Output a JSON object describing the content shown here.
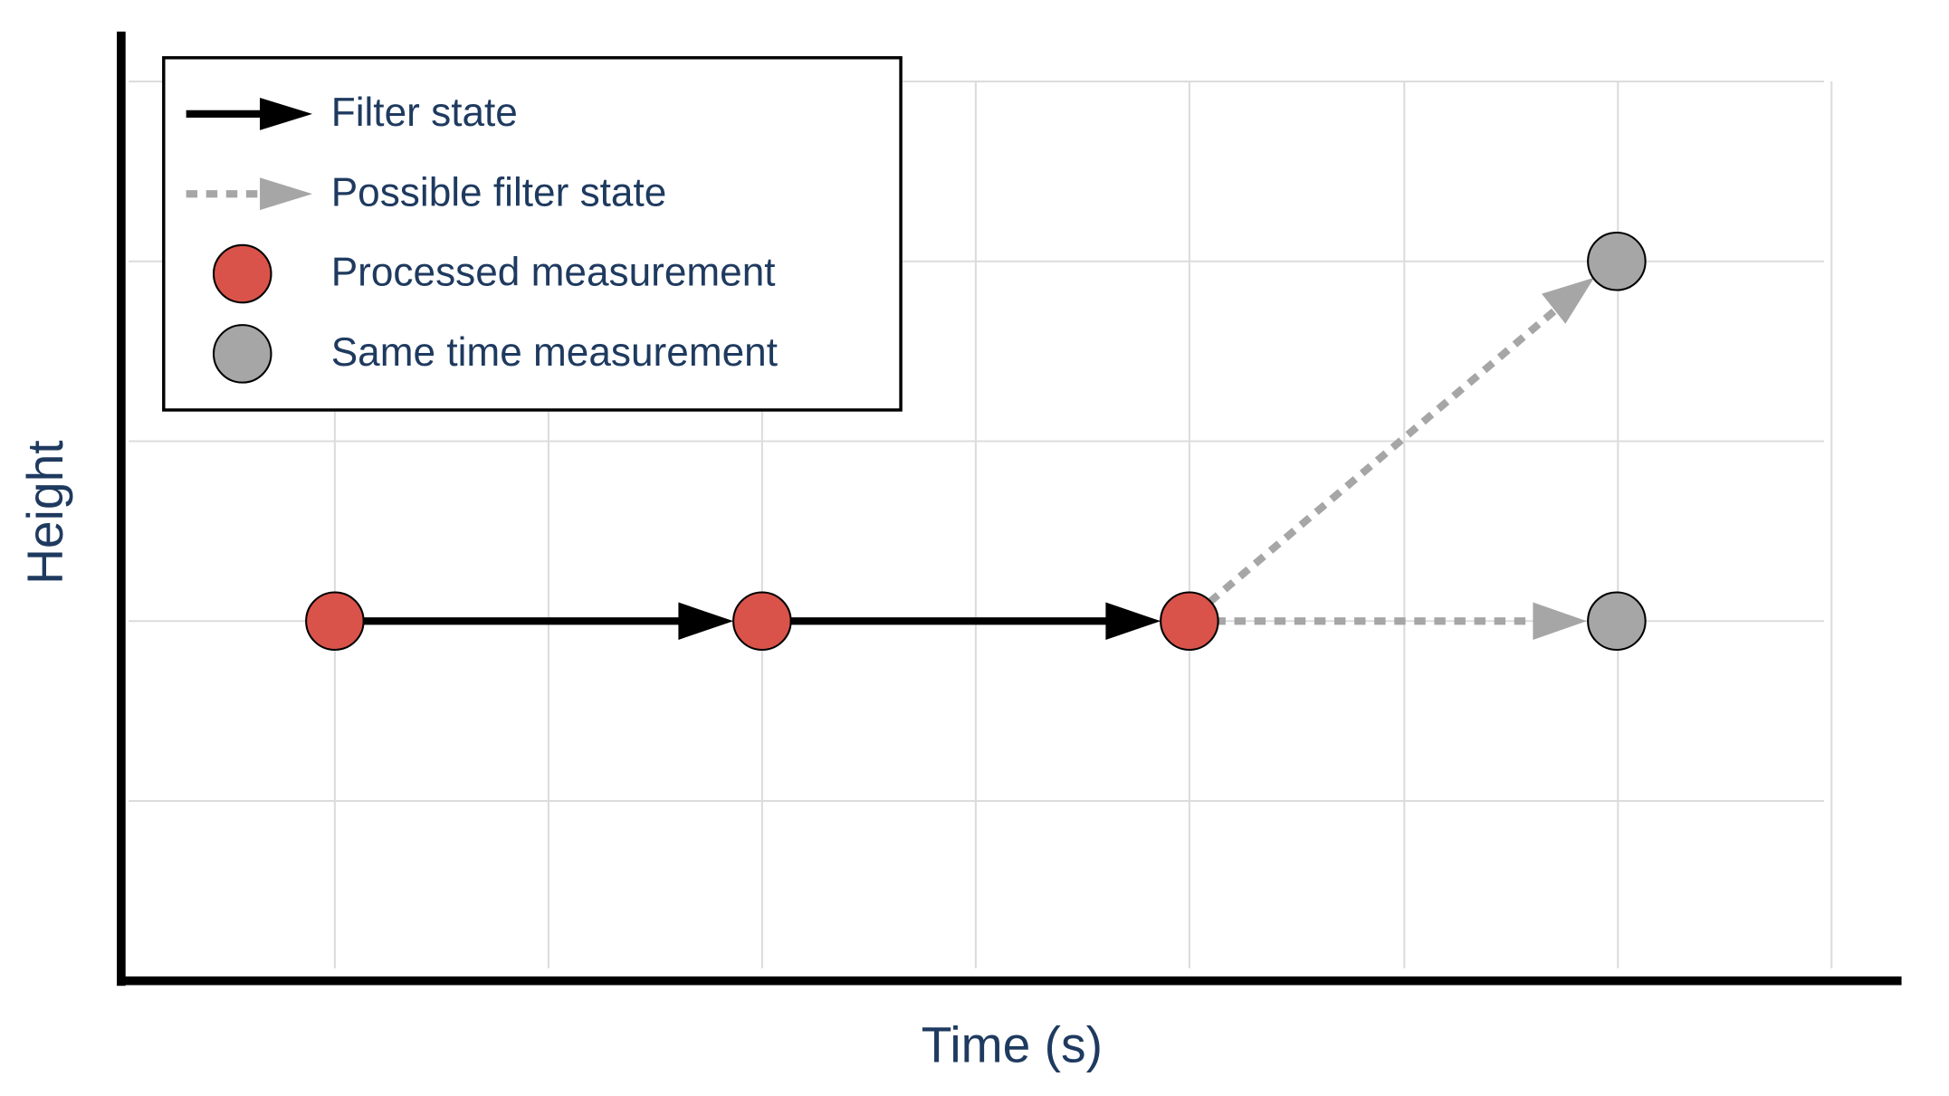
{
  "legend": {
    "items": [
      "Filter state",
      "Possible filter state",
      "Processed measurement",
      "Same time measurement"
    ]
  },
  "axes": {
    "x_label": "Time (s)",
    "y_label": "Height"
  }
}
